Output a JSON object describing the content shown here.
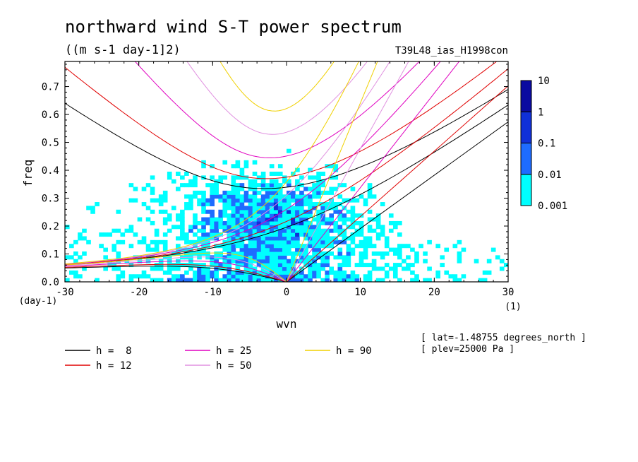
{
  "chart_data": {
    "type": "heatmap",
    "title": "northward wind S-T power spectrum",
    "units": "((m s-1 day-1]2)",
    "run_label": "T39L48_ias_H1998con",
    "xlabel": "wvn",
    "ylabel": "freq",
    "x_unit_label": "(1)",
    "y_unit_label": "(day-1)",
    "xlim": [
      -30,
      30
    ],
    "ylim": [
      0,
      0.79
    ],
    "x_ticks": [
      -30,
      -20,
      -10,
      0,
      10,
      20,
      30
    ],
    "x_tick_labels": [
      "-30",
      "-20",
      "-10",
      "0",
      "10",
      "20",
      "30"
    ],
    "y_ticks": [
      0,
      0.1,
      0.2,
      0.3,
      0.4,
      0.5,
      0.6,
      0.7
    ],
    "y_tick_labels": [
      "0.0",
      "0.1",
      "0.2",
      "0.3",
      "0.4",
      "0.5",
      "0.6",
      "0.7"
    ],
    "colorbar": {
      "levels": [
        0.001,
        0.01,
        0.1,
        1,
        10
      ],
      "level_labels": [
        "0.001",
        "0.01",
        "0.1",
        "1",
        "10"
      ],
      "colors": [
        "#00ffff",
        "#1e6cff",
        "#1030d8",
        "#0a0aa0",
        "#5010b0"
      ]
    },
    "dispersion_curves": [
      {
        "label": "h =  8",
        "h": 8,
        "color": "#000000"
      },
      {
        "label": "h = 12",
        "h": 12,
        "color": "#e00000"
      },
      {
        "label": "h = 25",
        "h": 25,
        "color": "#e000c0"
      },
      {
        "label": "h = 50",
        "h": 50,
        "color": "#e090e0"
      },
      {
        "label": "h = 90",
        "h": 90,
        "color": "#f0d000"
      }
    ],
    "annotations": [
      "[ lat=-1.48755 degrees_north ]",
      "[ plev=25000 Pa ]"
    ]
  }
}
